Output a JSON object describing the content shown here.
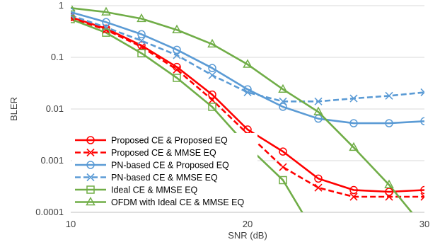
{
  "chart_data": {
    "type": "line",
    "xlabel": "SNR (dB)",
    "ylabel": "BLER",
    "x_scale": "linear",
    "y_scale": "log",
    "xlim": [
      10,
      30
    ],
    "ylim": [
      0.0001,
      1
    ],
    "x_ticks": [
      "10",
      "20",
      "30"
    ],
    "y_ticks": [
      "1",
      "0.1",
      "0.01",
      "0.001",
      "0.0001"
    ],
    "grid": "horizontal",
    "legend_position": "bottom-left",
    "series": [
      {
        "name": "Proposed CE & Proposed EQ",
        "color": "#ff0000",
        "dash": "solid",
        "marker": "circle",
        "x": [
          10,
          12,
          14,
          16,
          18,
          20,
          22,
          24,
          26,
          28,
          30
        ],
        "y": [
          0.6,
          0.36,
          0.17,
          0.065,
          0.019,
          0.004,
          0.0015,
          0.00045,
          0.00027,
          0.00025,
          0.00027
        ]
      },
      {
        "name": "Proposed CE & MMSE EQ",
        "color": "#ff0000",
        "dash": "dashed",
        "marker": "x",
        "x": [
          10,
          12,
          14,
          16,
          18,
          20,
          22,
          24,
          26,
          28,
          30
        ],
        "y": [
          0.58,
          0.34,
          0.16,
          0.058,
          0.015,
          0.0033,
          0.00075,
          0.0003,
          0.0002,
          0.0002,
          0.0002
        ]
      },
      {
        "name": "PN-based CE & Proposed EQ",
        "color": "#5b9bd5",
        "dash": "solid",
        "marker": "circle",
        "x": [
          10,
          12,
          14,
          16,
          18,
          20,
          22,
          24,
          26,
          28,
          30
        ],
        "y": [
          0.75,
          0.48,
          0.28,
          0.14,
          0.062,
          0.024,
          0.011,
          0.0065,
          0.0053,
          0.0053,
          0.0058
        ]
      },
      {
        "name": "PN-based CE & MMSE EQ",
        "color": "#5b9bd5",
        "dash": "dashed",
        "marker": "x",
        "x": [
          10,
          12,
          14,
          16,
          18,
          20,
          22,
          24,
          26,
          28,
          30
        ],
        "y": [
          0.65,
          0.38,
          0.21,
          0.11,
          0.045,
          0.021,
          0.014,
          0.014,
          0.016,
          0.018,
          0.021
        ]
      },
      {
        "name": "Ideal CE & MMSE EQ",
        "color": "#70ad47",
        "dash": "solid",
        "marker": "square",
        "x": [
          10,
          12,
          14,
          16,
          18,
          20,
          22,
          24
        ],
        "y": [
          0.55,
          0.3,
          0.12,
          0.04,
          0.011,
          0.0019,
          0.00042,
          3e-05
        ]
      },
      {
        "name": "OFDM with Ideal CE & MMSE EQ",
        "color": "#70ad47",
        "dash": "solid",
        "marker": "triangle",
        "x": [
          10,
          12,
          14,
          16,
          18,
          20,
          22,
          24,
          26,
          28,
          30
        ],
        "y": [
          0.9,
          0.75,
          0.56,
          0.34,
          0.18,
          0.073,
          0.024,
          0.0088,
          0.0018,
          0.00034,
          5e-05
        ]
      }
    ]
  }
}
